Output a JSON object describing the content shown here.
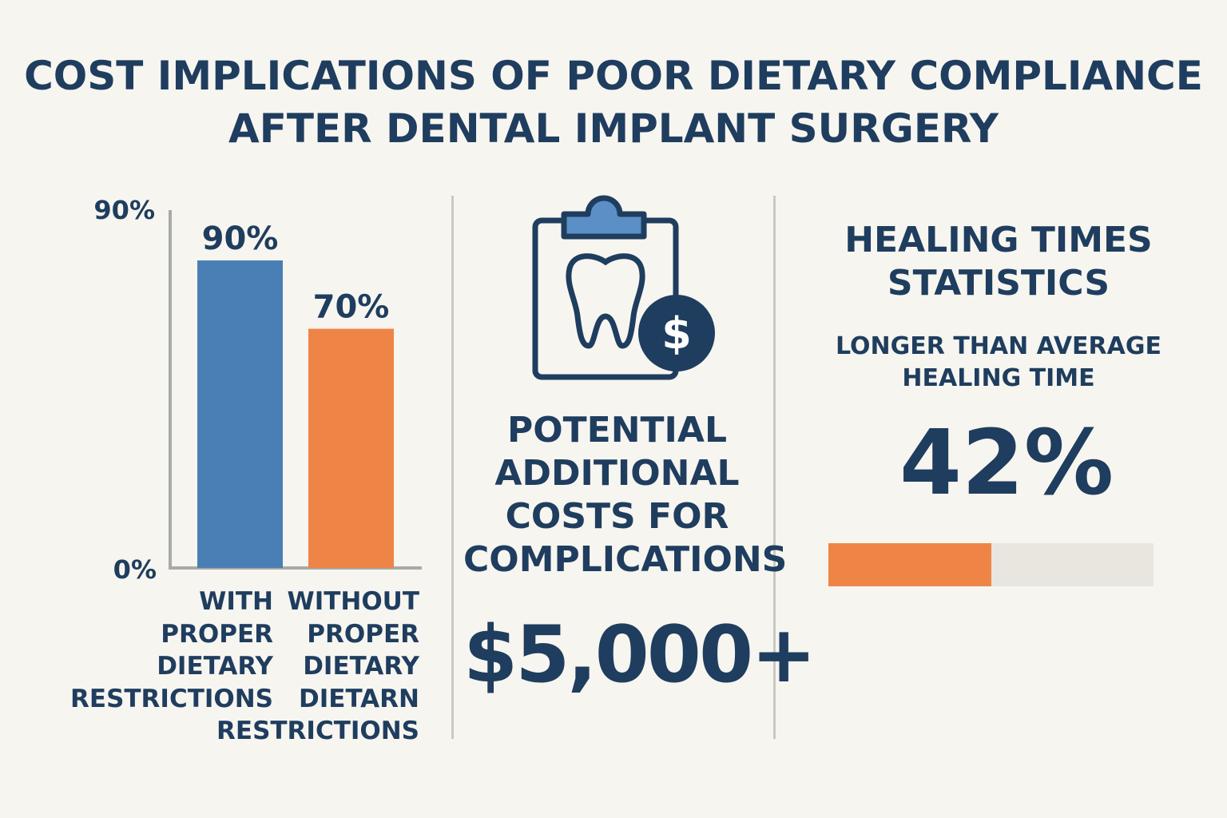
{
  "title_line1": "COST IMPLICATIONS OF POOR DIETARY COMPLIANCE",
  "title_line2": "AFTER DENTAL IMPLANT SURGERY",
  "chart_data": {
    "type": "bar",
    "categories": [
      "WITH PROPER DIETARY RESTRICTIONS",
      "WITHOUT PROPER DIETARY DIETARN RESTRICTIONS"
    ],
    "category_lines": [
      [
        "WITH",
        "PROPER",
        "DIETARY",
        "RESTRICTIONS"
      ],
      [
        "WITHOUT",
        "PROPER",
        "DIETARY",
        "DIETARN",
        "RESTRICTIONS"
      ]
    ],
    "values": [
      90,
      70
    ],
    "data_labels": [
      "90%",
      "70%"
    ],
    "colors": [
      "#4a7fb5",
      "#ee8547"
    ],
    "y_ticks": [
      "0%",
      "90%"
    ],
    "ylim": [
      0,
      90
    ],
    "grid": false
  },
  "costs": {
    "icon": "clipboard-tooth-dollar-icon",
    "label_lines": [
      "POTENTIAL",
      "ADDITIONAL",
      "COSTS FOR",
      "COMPLICATIONS"
    ],
    "amount": "$5,000+"
  },
  "healing": {
    "heading_lines": [
      "HEALING TIMES",
      "STATISTICS"
    ],
    "sub_lines": [
      "LONGER THAN AVERAGE",
      "HEALING TIME"
    ],
    "percent": "42%",
    "progress_fraction": 0.5,
    "fill_color": "#ee8547",
    "track_color": "#e9e6df"
  }
}
